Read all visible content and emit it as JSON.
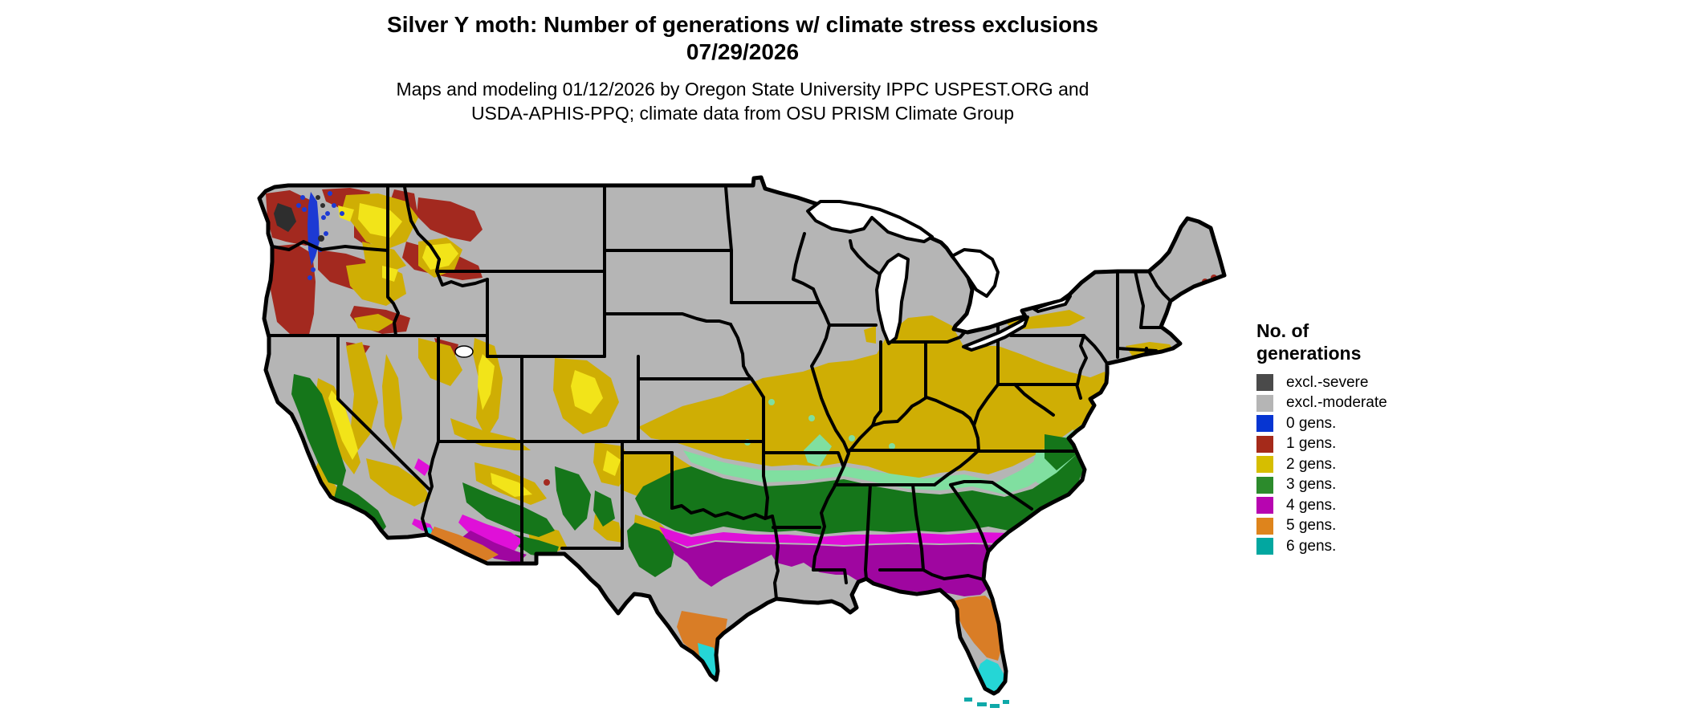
{
  "title": {
    "line1": "Silver Y moth: Number of generations w/ climate stress exclusions",
    "line2": "07/29/2026"
  },
  "subtitle": {
    "line1": "Maps and modeling 01/12/2026 by Oregon State University IPPC USPEST.ORG and",
    "line2": "USDA-APHIS-PPQ; climate data from OSU PRISM Climate Group"
  },
  "legend": {
    "title_line1": "No. of",
    "title_line2": "generations",
    "items": [
      {
        "label": "excl.-severe",
        "color": "#4a4a4a"
      },
      {
        "label": "excl.-moderate",
        "color": "#b5b5b5"
      },
      {
        "label": "0 gens.",
        "color": "#0635d2"
      },
      {
        "label": "1 gens.",
        "color": "#a52a1a"
      },
      {
        "label": "2 gens.",
        "color": "#d6be00"
      },
      {
        "label": "3 gens.",
        "color": "#2c8b2c"
      },
      {
        "label": "4 gens.",
        "color": "#b705b0"
      },
      {
        "label": "5 gens.",
        "color": "#de841c"
      },
      {
        "label": "6 gens.",
        "color": "#02a7a0"
      }
    ]
  },
  "map": {
    "region": "Continental United States",
    "map_palette": {
      "base": "#b5b5b5",
      "severe": "#2e2e2e",
      "blue": "#1d3ad4",
      "brick": "#a3291f",
      "gold": "#cfae04",
      "yellow": "#f2e419",
      "mint": "#80dfa0",
      "green": "#15761a",
      "magenta": "#df10d8",
      "purple": "#9f06a0",
      "orange": "#d97d26",
      "cyan": "#25d6d6",
      "teal": "#0fa9a9"
    }
  }
}
